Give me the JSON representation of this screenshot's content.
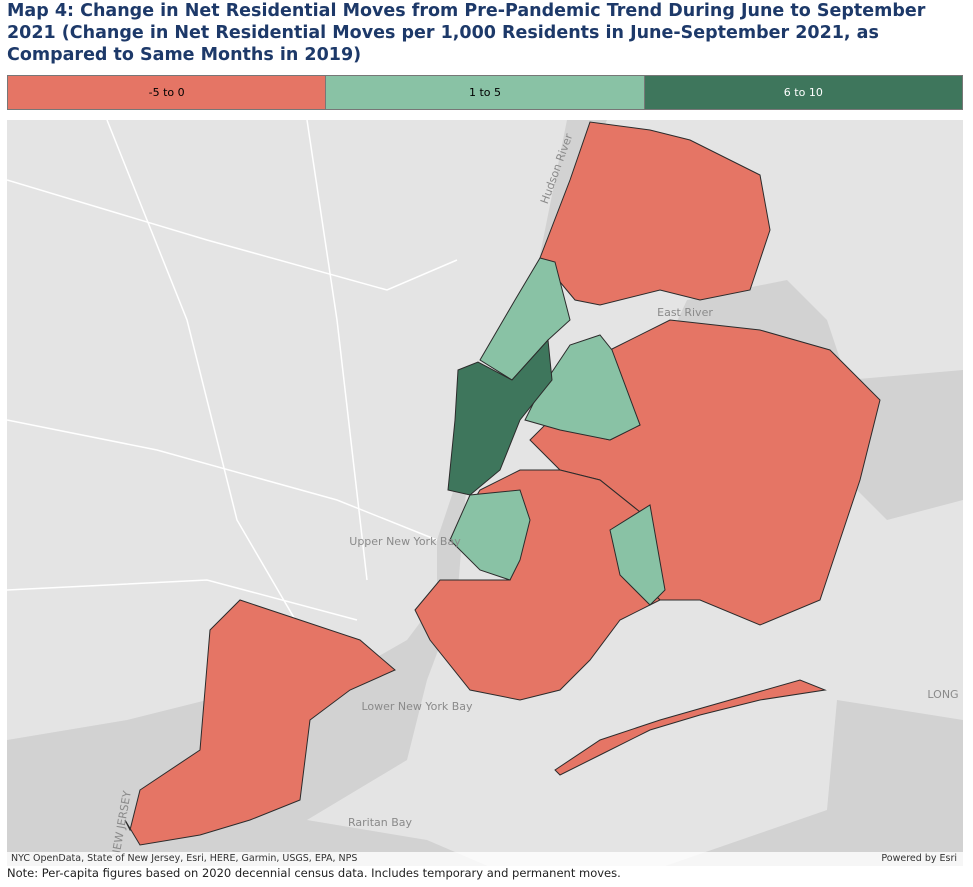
{
  "header": {
    "title": "Map 4: Change in Net Residential Moves from Pre-Pandemic Trend During June to September 2021 (Change in Net Residential Moves per 1,000 Residents in June-September 2021, as Compared to Same Months in 2019)"
  },
  "legend": [
    {
      "label": "-5 to 0",
      "color": "#e57565"
    },
    {
      "label": "1 to 5",
      "color": "#89c2a5"
    },
    {
      "label": "6 to 10",
      "color": "#3e765c"
    }
  ],
  "map": {
    "labels": {
      "hudson": "Hudson River",
      "east": "East River",
      "upper_bay": "Upper New York Bay",
      "lower_bay": "Lower New York Bay",
      "raritan": "Raritan Bay",
      "long": "LONG",
      "nj": "NEW JERSEY"
    },
    "attribution": "NYC OpenData, State of New Jersey, Esri, HERE, Garmin, USGS, EPA, NPS",
    "powered": "Powered by Esri"
  },
  "note": "Note: Per-capita figures based on 2020 decennial census data. Includes temporary and permanent moves."
}
